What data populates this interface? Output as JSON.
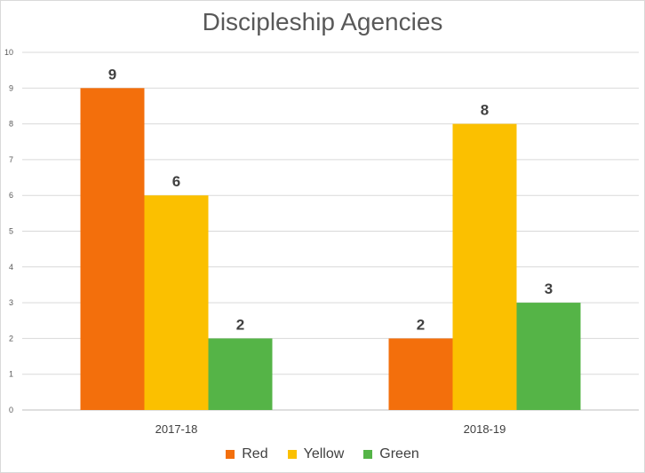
{
  "chart_data": {
    "type": "bar",
    "title": "Discipleship Agencies",
    "categories": [
      "2017-18",
      "2018-19"
    ],
    "series": [
      {
        "name": "Red",
        "values": [
          9,
          2
        ],
        "color": "#f36f0c"
      },
      {
        "name": "Yellow",
        "values": [
          6,
          8
        ],
        "color": "#fbc000"
      },
      {
        "name": "Green",
        "values": [
          2,
          3
        ],
        "color": "#55b447"
      }
    ],
    "ylim": [
      0,
      10
    ],
    "yticks": [
      "0",
      "1",
      "2",
      "3",
      "4",
      "5",
      "6",
      "7",
      "8",
      "9",
      "10"
    ],
    "grid": true,
    "legend_position": "bottom",
    "data_labels": true
  }
}
